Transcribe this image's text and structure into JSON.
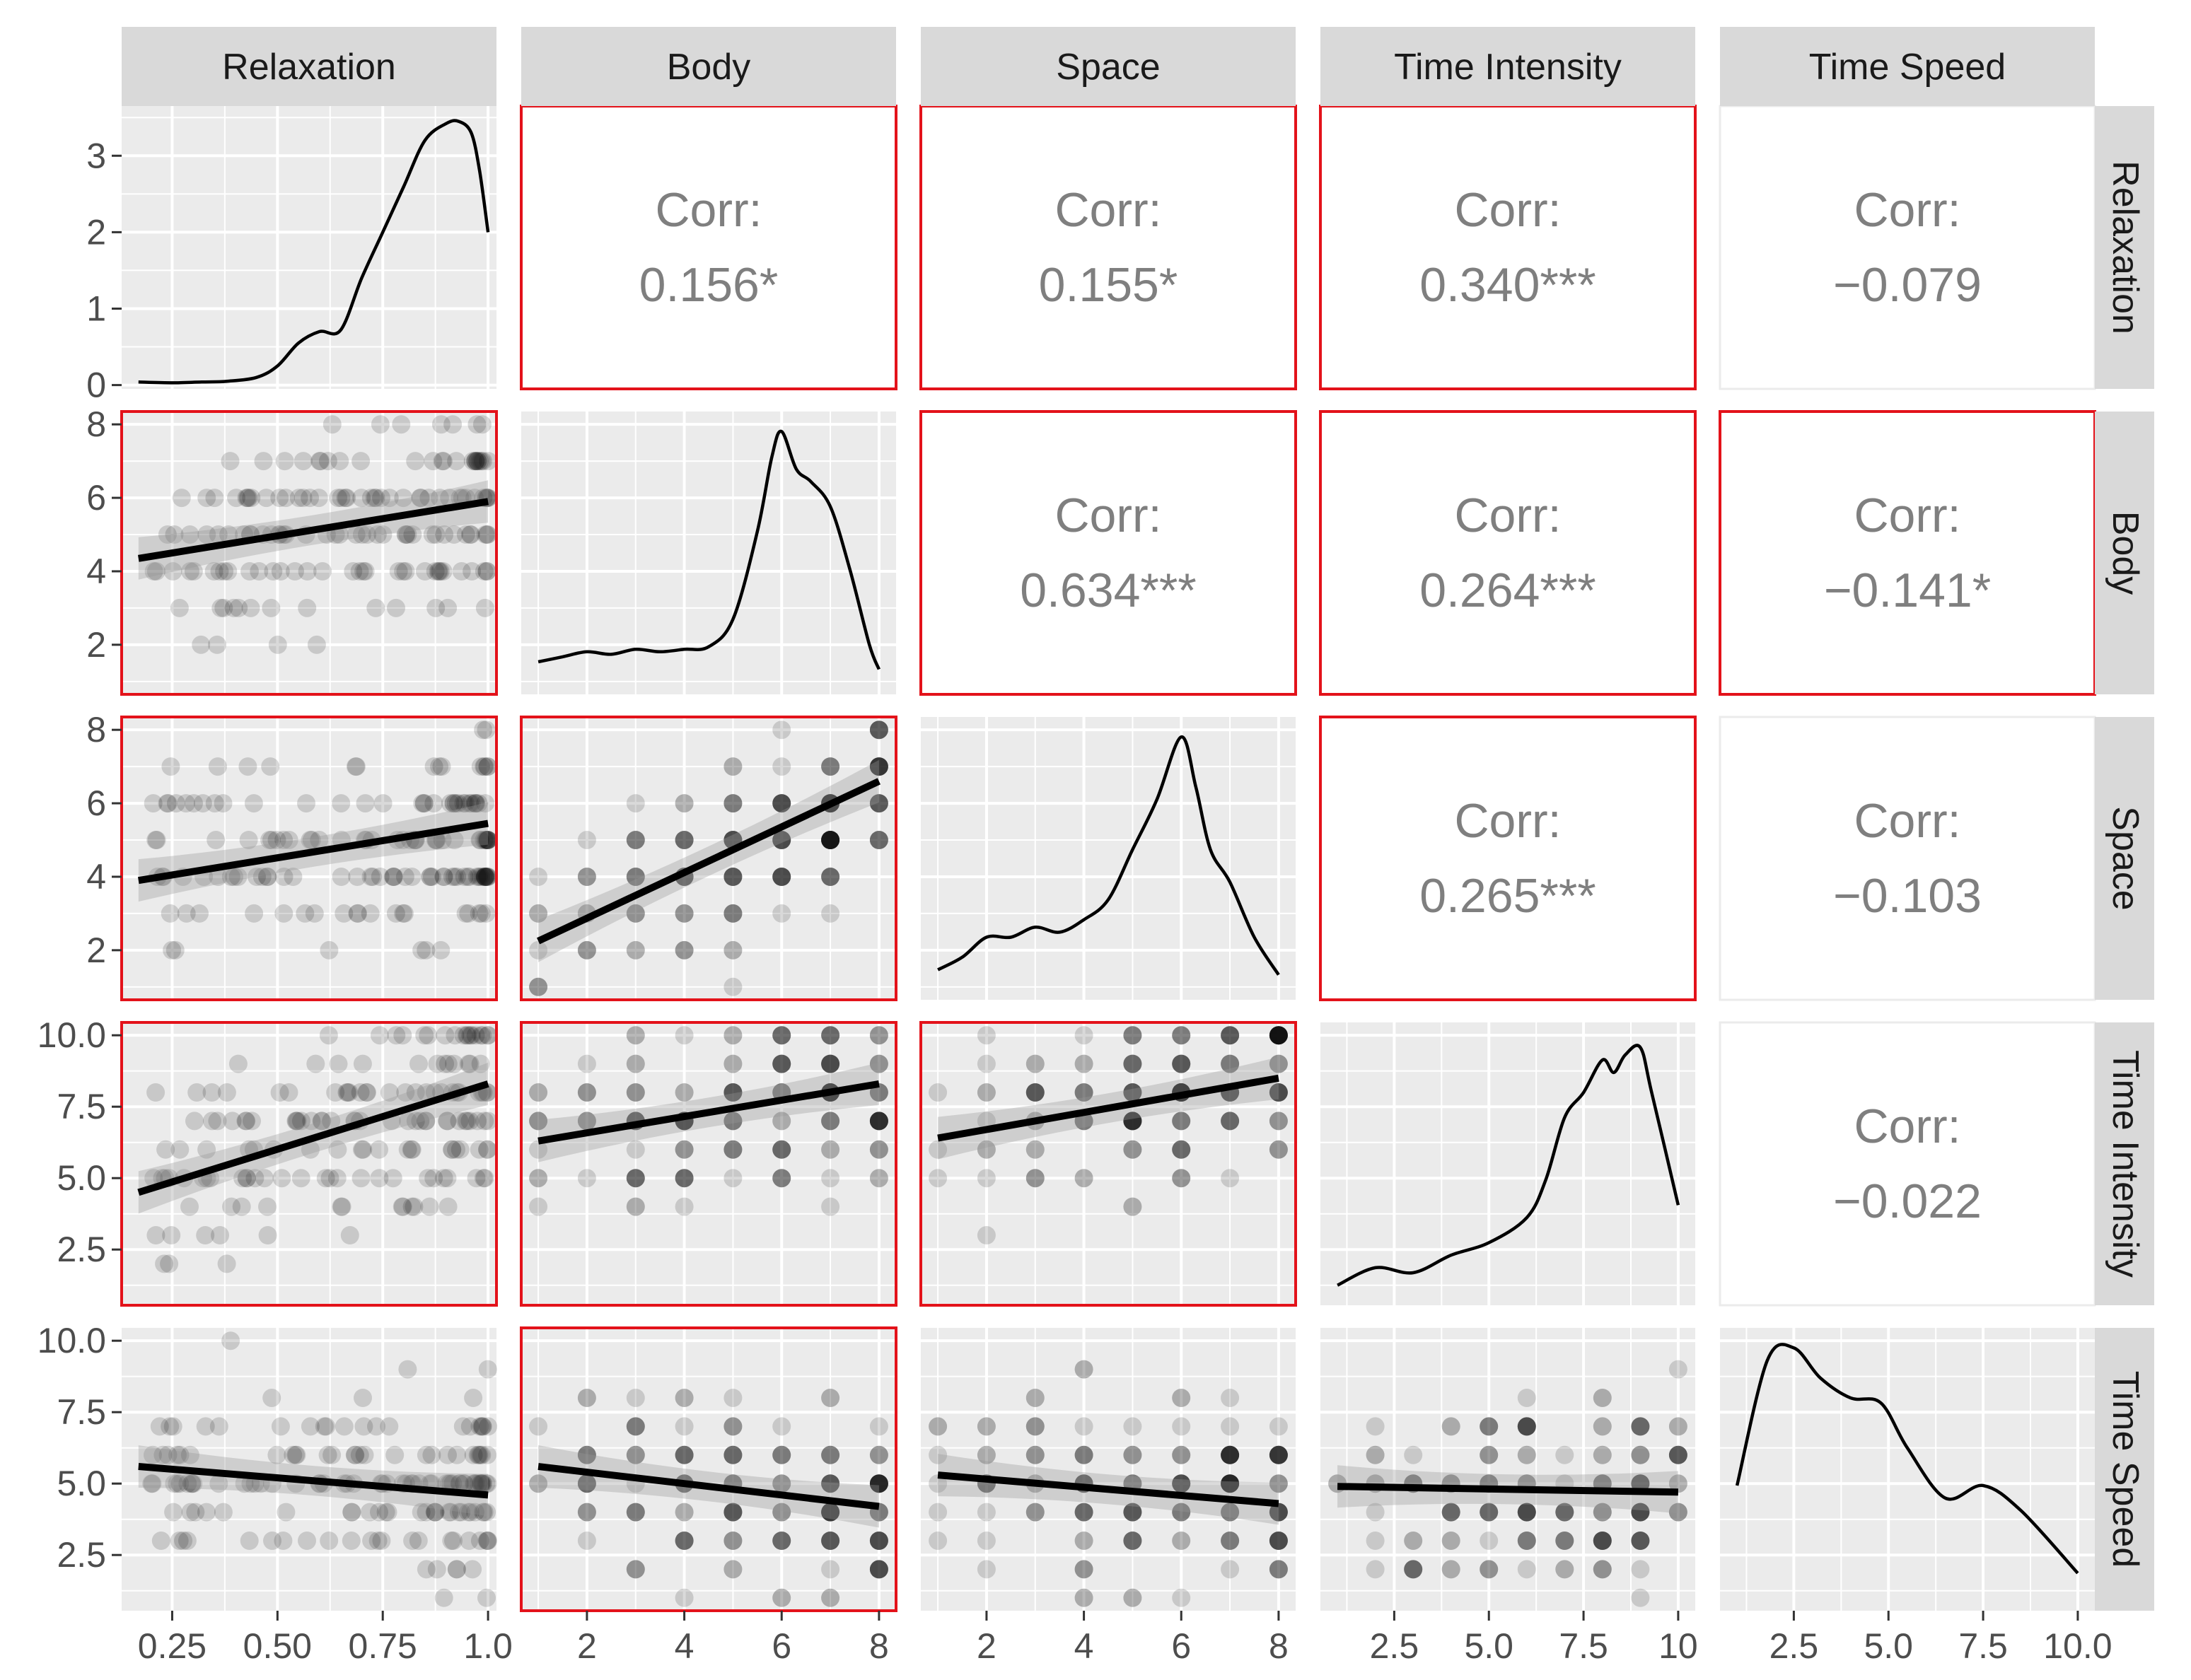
{
  "chart_data": {
    "type": "scatter-matrix",
    "variables": [
      "Relaxation",
      "Body",
      "Space",
      "Time Intensity",
      "Time Speed"
    ],
    "x_ticks": [
      [
        "0.25",
        "0.50",
        "0.75",
        "1.0"
      ],
      [
        "2",
        "4",
        "6",
        "8"
      ],
      [
        "2",
        "4",
        "6",
        "8"
      ],
      [
        "2.5",
        "5.0",
        "7.5",
        "10"
      ],
      [
        "2.5",
        "5.0",
        "7.5",
        "10.0"
      ]
    ],
    "y_ticks": [
      [
        "0",
        "1",
        "2",
        "3"
      ],
      [
        "2",
        "4",
        "6",
        "8"
      ],
      [
        "2",
        "4",
        "6",
        "8"
      ],
      [
        "2.5",
        "5.0",
        "7.5",
        "10.0"
      ],
      [
        "2.5",
        "5.0",
        "7.5",
        "10.0"
      ]
    ],
    "corr_label": "Corr:",
    "correlations": [
      {
        "row": 0,
        "col": 1,
        "value": "0.156*",
        "significant": true
      },
      {
        "row": 0,
        "col": 2,
        "value": "0.155*",
        "significant": true
      },
      {
        "row": 0,
        "col": 3,
        "value": "0.340***",
        "significant": true
      },
      {
        "row": 0,
        "col": 4,
        "value": "−0.079",
        "significant": false
      },
      {
        "row": 1,
        "col": 2,
        "value": "0.634***",
        "significant": true
      },
      {
        "row": 1,
        "col": 3,
        "value": "0.264***",
        "significant": true
      },
      {
        "row": 1,
        "col": 4,
        "value": "−0.141*",
        "significant": true
      },
      {
        "row": 2,
        "col": 3,
        "value": "0.265***",
        "significant": true
      },
      {
        "row": 2,
        "col": 4,
        "value": "−0.103",
        "significant": false
      },
      {
        "row": 3,
        "col": 4,
        "value": "−0.022",
        "significant": false
      }
    ],
    "scatter_fits": [
      {
        "row": 1,
        "col": 0,
        "x": [
          0.17,
          1.0
        ],
        "y": [
          4.35,
          5.9
        ],
        "significant": true
      },
      {
        "row": 2,
        "col": 0,
        "x": [
          0.17,
          1.0
        ],
        "y": [
          3.9,
          5.45
        ],
        "significant": true
      },
      {
        "row": 2,
        "col": 1,
        "x": [
          1,
          8
        ],
        "y": [
          2.25,
          6.6
        ],
        "significant": true
      },
      {
        "row": 3,
        "col": 0,
        "x": [
          0.17,
          1.0
        ],
        "y": [
          4.5,
          8.3
        ],
        "significant": true
      },
      {
        "row": 3,
        "col": 1,
        "x": [
          1,
          8
        ],
        "y": [
          6.3,
          8.3
        ],
        "significant": true
      },
      {
        "row": 3,
        "col": 2,
        "x": [
          1,
          8
        ],
        "y": [
          6.4,
          8.5
        ],
        "significant": true
      },
      {
        "row": 4,
        "col": 0,
        "x": [
          0.17,
          1.0
        ],
        "y": [
          5.6,
          4.6
        ],
        "significant": false
      },
      {
        "row": 4,
        "col": 1,
        "x": [
          1,
          8
        ],
        "y": [
          5.6,
          4.2
        ],
        "significant": true
      },
      {
        "row": 4,
        "col": 2,
        "x": [
          1,
          8
        ],
        "y": [
          5.3,
          4.3
        ],
        "significant": false
      },
      {
        "row": 4,
        "col": 3,
        "x": [
          1,
          10
        ],
        "y": [
          4.9,
          4.7
        ],
        "significant": false
      }
    ],
    "densities": [
      {
        "variable": "Relaxation",
        "x": [
          0.17,
          0.25,
          0.32,
          0.38,
          0.45,
          0.5,
          0.55,
          0.6,
          0.65,
          0.7,
          0.75,
          0.8,
          0.85,
          0.9,
          0.93,
          0.96,
          0.98,
          1.0
        ],
        "y": [
          0.04,
          0.03,
          0.04,
          0.05,
          0.1,
          0.25,
          0.55,
          0.7,
          0.72,
          1.4,
          2.0,
          2.6,
          3.2,
          3.42,
          3.45,
          3.3,
          2.8,
          2.0
        ]
      },
      {
        "variable": "Body",
        "x": [
          1,
          1.5,
          2,
          2.5,
          3,
          3.5,
          4,
          4.5,
          5,
          5.5,
          5.8,
          6,
          6.3,
          6.6,
          7,
          7.4,
          7.8,
          8
        ],
        "y": [
          0.08,
          0.1,
          0.12,
          0.11,
          0.13,
          0.12,
          0.13,
          0.14,
          0.25,
          0.6,
          0.9,
          1.0,
          0.85,
          0.8,
          0.7,
          0.45,
          0.15,
          0.05
        ]
      },
      {
        "variable": "Space",
        "x": [
          1,
          1.5,
          2,
          2.5,
          3,
          3.5,
          4,
          4.5,
          5,
          5.5,
          6,
          6.3,
          6.6,
          7,
          7.5,
          8
        ],
        "y": [
          0.07,
          0.12,
          0.2,
          0.2,
          0.24,
          0.22,
          0.27,
          0.35,
          0.55,
          0.75,
          1.0,
          0.8,
          0.55,
          0.42,
          0.2,
          0.05
        ]
      },
      {
        "variable": "Time Intensity",
        "x": [
          1,
          2,
          3,
          4,
          5,
          6,
          6.5,
          7,
          7.5,
          8,
          8.3,
          8.6,
          9,
          9.3,
          10
        ],
        "y": [
          0.03,
          0.1,
          0.08,
          0.15,
          0.2,
          0.3,
          0.45,
          0.7,
          0.8,
          0.93,
          0.88,
          0.95,
          0.98,
          0.8,
          0.35
        ]
      },
      {
        "variable": "Time Speed",
        "x": [
          1,
          1.8,
          2.5,
          3.2,
          4,
          4.8,
          5.5,
          6.5,
          7.5,
          8.5,
          10
        ],
        "y": [
          0.45,
          0.95,
          1.0,
          0.88,
          0.8,
          0.78,
          0.6,
          0.4,
          0.45,
          0.35,
          0.1
        ]
      }
    ]
  }
}
